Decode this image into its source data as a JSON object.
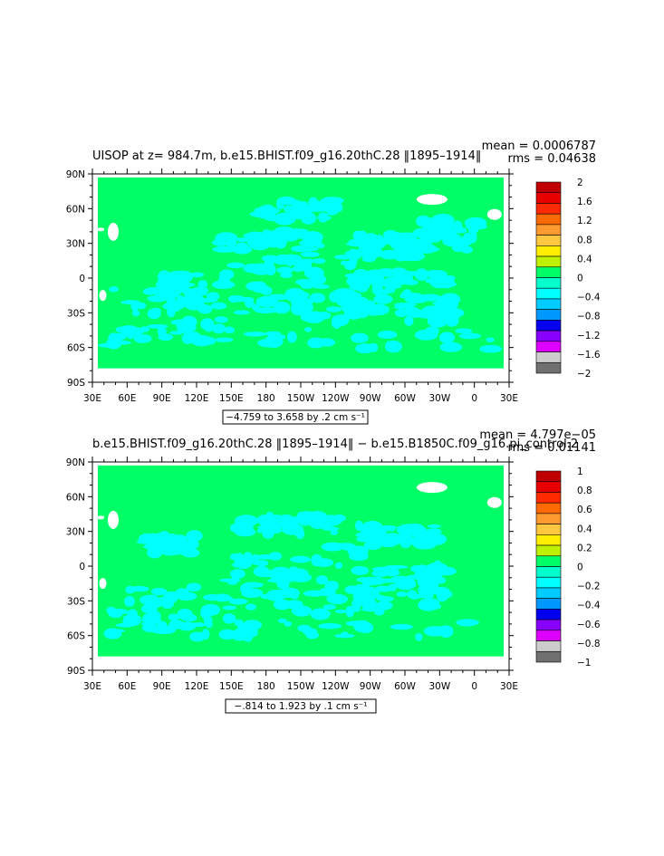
{
  "chart_data": [
    {
      "type": "heatmap",
      "title": "UISOP at z= 984.7m, b.e15.BHIST.f09_g16.20thC.28 ‖1895–1914‖",
      "stats": {
        "mean": "mean = 0.0006787",
        "rms": "rms = 0.04638"
      },
      "range_text": "−4.759 to 3.658 by .2 cm s⁻¹",
      "x_ticks": [
        "30E",
        "60E",
        "90E",
        "120E",
        "150E",
        "180",
        "150W",
        "120W",
        "90W",
        "60W",
        "30W",
        "0",
        "30E"
      ],
      "y_ticks": [
        "90N",
        "60N",
        "30N",
        "0",
        "30S",
        "60S",
        "90S"
      ],
      "ylim": [
        -90,
        90
      ],
      "colorbar": {
        "labels": [
          "2",
          "1.6",
          "1.2",
          "0.8",
          "0.4",
          "0",
          "−0.4",
          "−0.8",
          "−1.2",
          "−1.6",
          "−2"
        ],
        "colors": [
          "#c00000",
          "#e80000",
          "#ff2a00",
          "#ff6a00",
          "#ff9a30",
          "#ffc840",
          "#ffee00",
          "#bff000",
          "#00ff66",
          "#00ffcc",
          "#00ffff",
          "#00ccff",
          "#0099ff",
          "#0000ee",
          "#8800ff",
          "#dd00ff",
          "#cccccc",
          "#707070"
        ]
      },
      "fields": {
        "ocean_positive": "#00ff66",
        "ocean_negative": "#00ffff",
        "land": "#ffffff"
      }
    },
    {
      "type": "heatmap",
      "title": "b.e15.BHIST.f09_g16.20thC.28 ‖1895–1914‖ − b.e15.B1850C.f09_g16.pi_control.2",
      "stats": {
        "mean": "mean = 4.797e−05",
        "rms": "rms = 0.01141"
      },
      "range_text": "−.814 to 1.923 by .1 cm s⁻¹",
      "x_ticks": [
        "30E",
        "60E",
        "90E",
        "120E",
        "150E",
        "180",
        "150W",
        "120W",
        "90W",
        "60W",
        "30W",
        "0",
        "30E"
      ],
      "y_ticks": [
        "90N",
        "60N",
        "30N",
        "0",
        "30S",
        "60S",
        "90S"
      ],
      "ylim": [
        -90,
        90
      ],
      "colorbar": {
        "labels": [
          "1",
          "0.8",
          "0.6",
          "0.4",
          "0.2",
          "0",
          "−0.2",
          "−0.4",
          "−0.6",
          "−0.8",
          "−1"
        ],
        "colors": [
          "#c00000",
          "#e80000",
          "#ff2a00",
          "#ff6a00",
          "#ff9a30",
          "#ffc840",
          "#ffee00",
          "#bff000",
          "#00ff66",
          "#00ffcc",
          "#00ffff",
          "#00ccff",
          "#0099ff",
          "#0000ee",
          "#8800ff",
          "#dd00ff",
          "#cccccc",
          "#707070"
        ]
      },
      "fields": {
        "ocean_positive": "#00ff66",
        "ocean_negative": "#00ffff",
        "land": "#ffffff"
      }
    }
  ]
}
